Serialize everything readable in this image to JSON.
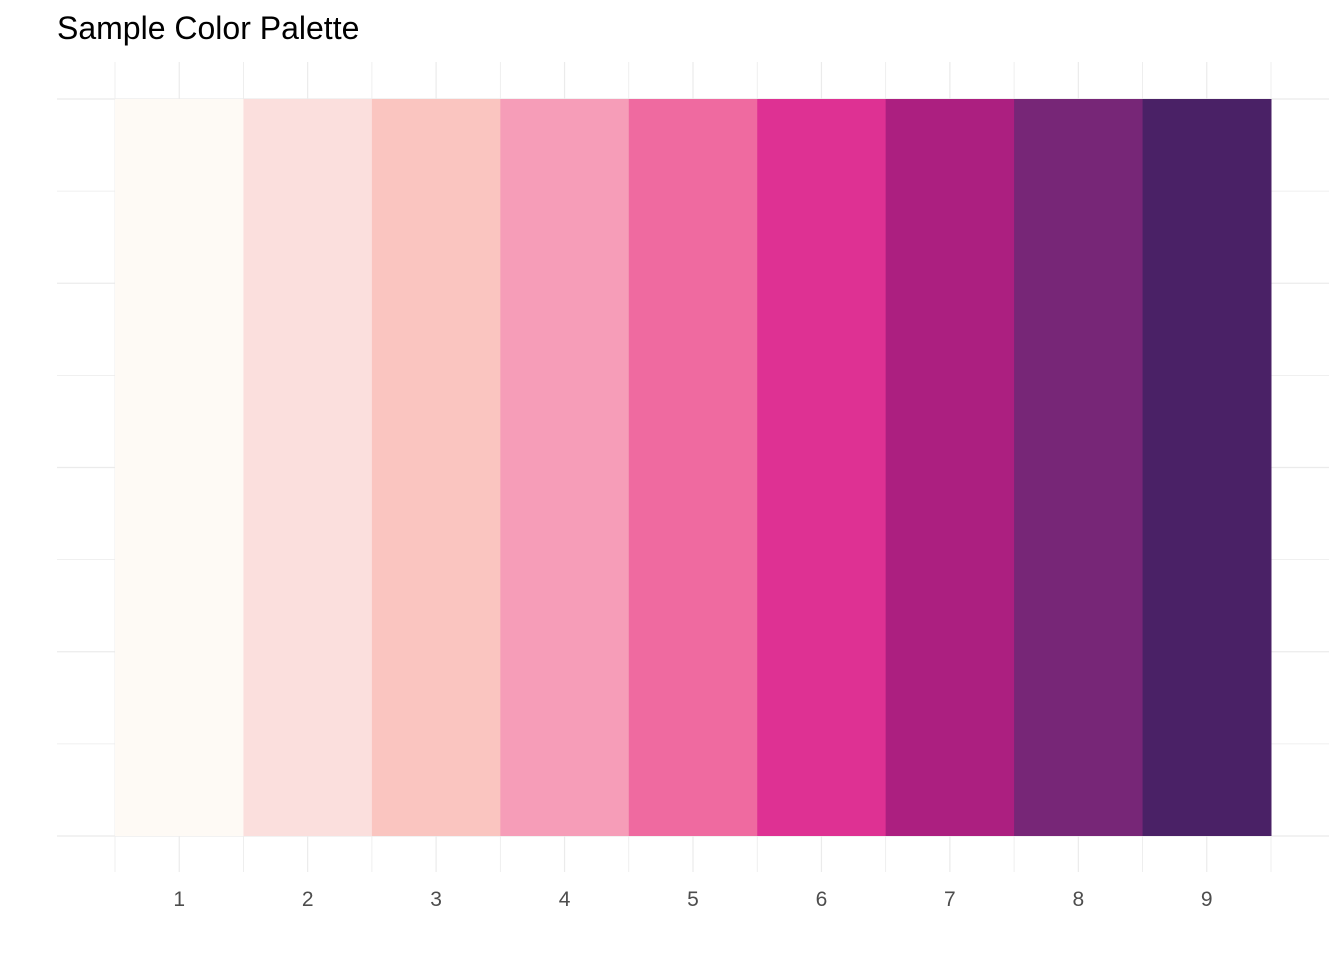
{
  "chart_data": {
    "type": "heatmap",
    "title": "Sample Color Palette",
    "xlabel": "",
    "ylabel": "",
    "categories": [
      "1",
      "2",
      "3",
      "4",
      "5",
      "6",
      "7",
      "8",
      "9"
    ],
    "colors": [
      "#fefaf5",
      "#fbdfdd",
      "#fac5c0",
      "#f69db8",
      "#ef6aa0",
      "#de3193",
      "#ac1f80",
      "#772677",
      "#4a2166"
    ],
    "grid": true,
    "legend": "none"
  }
}
